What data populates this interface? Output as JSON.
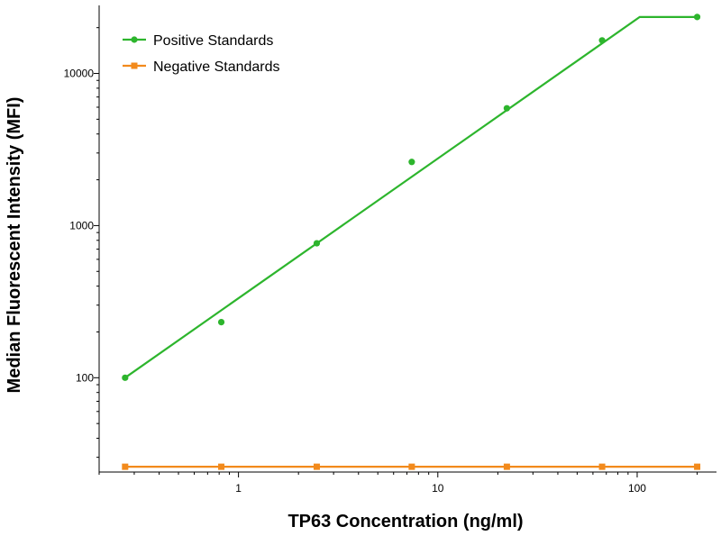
{
  "chart_data": {
    "type": "line",
    "xlabel": "TP63 Concentration (ng/ml)",
    "ylabel": "Median Fluorescent Intensity (MFI)",
    "x_scale": "log",
    "y_scale": "log",
    "xlim": [
      0.2,
      250
    ],
    "ylim": [
      24,
      28000
    ],
    "x_ticks": [
      1,
      10,
      100
    ],
    "x_tick_labels": [
      "1",
      "10",
      "100"
    ],
    "y_ticks": [
      100,
      1000,
      10000
    ],
    "y_tick_labels": [
      "100",
      "1000",
      "10000"
    ],
    "grid": false,
    "legend_position": "top-left",
    "series": [
      {
        "name": "Positive Standards",
        "color": "#2db52d",
        "points": [
          {
            "x": 0.27,
            "y": 100
          },
          {
            "x": 0.82,
            "y": 232
          },
          {
            "x": 2.47,
            "y": 765
          },
          {
            "x": 7.4,
            "y": 2620
          },
          {
            "x": 22.2,
            "y": 5900
          },
          {
            "x": 66.7,
            "y": 16500
          },
          {
            "x": 200,
            "y": 23500
          }
        ],
        "fit_curve": [
          {
            "x": 0.27,
            "y": 100
          },
          {
            "x": 103,
            "y": 23500
          },
          {
            "x": 200,
            "y": 23500
          }
        ]
      },
      {
        "name": "Negative Standards",
        "color": "#f28a1c",
        "points": [
          {
            "x": 0.27,
            "y": 26
          },
          {
            "x": 0.82,
            "y": 26
          },
          {
            "x": 2.47,
            "y": 26
          },
          {
            "x": 7.4,
            "y": 26
          },
          {
            "x": 22.2,
            "y": 26
          },
          {
            "x": 66.7,
            "y": 26
          },
          {
            "x": 200,
            "y": 26
          }
        ],
        "fit_curve": [
          {
            "x": 0.27,
            "y": 26
          },
          {
            "x": 200,
            "y": 26
          }
        ]
      }
    ]
  }
}
